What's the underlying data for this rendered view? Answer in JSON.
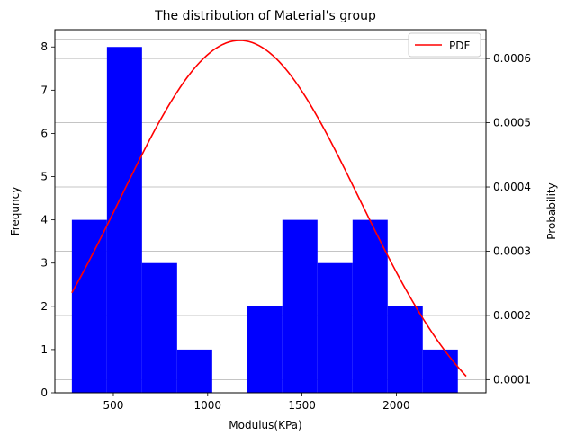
{
  "chart_data": {
    "type": "bar",
    "title": "The distribution of Material's group",
    "xlabel": "Modulus(KPa)",
    "ylabel": "Frequncy",
    "y2label": "Probability",
    "xlim": [
      190,
      2475
    ],
    "ylim": [
      0,
      8.4
    ],
    "y2lim": [
      7.95e-05,
      0.000645
    ],
    "xticks": [
      500,
      1000,
      1500,
      2000
    ],
    "yticks": [
      0,
      1,
      2,
      3,
      4,
      5,
      6,
      7,
      8
    ],
    "y2ticks": [
      0.0001,
      0.0002,
      0.0003,
      0.0004,
      0.0005,
      0.0006
    ],
    "y2tick_labels": [
      "0.0001",
      "0.0002",
      "0.0003",
      "0.0004",
      "0.0005",
      "0.0006"
    ],
    "grid": "horizontal on secondary axis",
    "histogram": {
      "bin_edges": [
        280,
        466,
        652,
        838,
        1024,
        1210,
        1396,
        1582,
        1768,
        1954,
        2140,
        2326
      ],
      "counts": [
        4,
        8,
        3,
        1,
        0,
        2,
        4,
        3,
        4,
        2,
        1
      ],
      "color": "#0000ff"
    },
    "pdf_curve": {
      "name": "PDF",
      "color": "#ff0000",
      "mean": 1170,
      "std": 635,
      "x_range": [
        280,
        2370
      ]
    },
    "legend": {
      "position": "top-right",
      "entries": [
        "PDF"
      ]
    }
  }
}
